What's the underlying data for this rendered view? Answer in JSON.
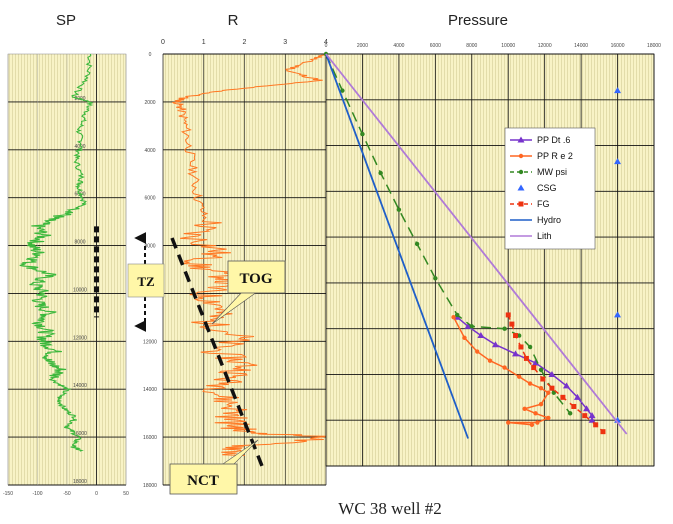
{
  "caption": "WC 38 well #2",
  "chart_data": [
    {
      "type": "line",
      "title": "SP",
      "xlim": [
        -150,
        50
      ],
      "ylim": [
        0,
        18000
      ],
      "x_ticks": [
        "-150",
        "-100",
        "-50",
        "0",
        "50"
      ],
      "y_ticks": [
        "2000",
        "4000",
        "6000",
        "8000",
        "10000",
        "12000",
        "14000",
        "16000",
        "18000"
      ],
      "series": [
        {
          "color": "#3cb83c",
          "depth": [
            0,
            1000,
            1800,
            2000,
            2600,
            3200,
            3800,
            4400,
            5200,
            5600,
            6200,
            6600,
            6900,
            7200,
            7600,
            8000,
            8400,
            8800,
            9200,
            9600,
            10000,
            10400,
            10800,
            11200,
            11600,
            12000,
            12400,
            12800,
            13200,
            13600,
            14000,
            14400,
            14800,
            15200,
            15600,
            16000,
            16400,
            16600
          ],
          "value": [
            -10,
            -15,
            -40,
            -10,
            -20,
            -30,
            -25,
            -35,
            -25,
            -30,
            -20,
            -40,
            -80,
            -100,
            -90,
            -110,
            -95,
            -120,
            -80,
            -105,
            -90,
            -100,
            -80,
            -95,
            -85,
            -90,
            -70,
            -85,
            -60,
            -75,
            -50,
            -65,
            -55,
            -35,
            -50,
            -30,
            -40,
            -25
          ]
        }
      ]
    },
    {
      "type": "line",
      "title": "R",
      "xlim": [
        0,
        4
      ],
      "ylim": [
        0,
        18000
      ],
      "x_ticks": [
        "0",
        "1",
        "2",
        "3",
        "4"
      ],
      "y_ticks": [
        "0",
        "2000",
        "4000",
        "6000",
        "8000",
        "10000",
        "12000",
        "14000",
        "16000",
        "18000"
      ],
      "series": [
        {
          "color": "#ff7722",
          "depth": [
            0,
            300,
            700,
            1100,
            1500,
            1800,
            2000,
            2300,
            3000,
            4000,
            5000,
            6000,
            7000,
            7600,
            8200,
            8800,
            9400,
            10000,
            10600,
            11200,
            11800,
            12400,
            13000,
            13600,
            14200,
            14800,
            15400,
            15800,
            16000,
            16400,
            16800
          ],
          "value": [
            4,
            3.5,
            3,
            3.8,
            1.5,
            0.5,
            0.3,
            0.4,
            0.5,
            0.6,
            0.7,
            0.8,
            1,
            0.5,
            1.2,
            0.6,
            1.5,
            0.8,
            1.3,
            0.9,
            1.7,
            1.1,
            1.9,
            1.4,
            1.2,
            1.6,
            1.5,
            1.8,
            4,
            1.7,
            1.5
          ]
        }
      ],
      "annotations": [
        "TZ",
        "TOG",
        "NCT"
      ]
    },
    {
      "type": "line",
      "title": "Pressure",
      "xlim": [
        0,
        18000
      ],
      "ylim": [
        0,
        18000
      ],
      "x_ticks": [
        "0",
        "2000",
        "4000",
        "6000",
        "8000",
        "10000",
        "12000",
        "14000",
        "16000",
        "18000"
      ],
      "series": [
        {
          "name": "PP Dt .6",
          "color": "#7733cc",
          "marker": "triangle",
          "dash": "none",
          "x": [
            7200,
            7800,
            8500,
            9300,
            10400,
            11500,
            12400,
            13200,
            13800,
            14300,
            14600,
            14600
          ],
          "y": [
            11500,
            11900,
            12300,
            12700,
            13100,
            13500,
            14000,
            14500,
            15000,
            15500,
            15800,
            16000
          ]
        },
        {
          "name": "PP R e 2",
          "color": "#ff6622",
          "marker": "dot",
          "dash": "none",
          "x": [
            7000,
            7600,
            8300,
            9000,
            9800,
            10600,
            11200,
            11800,
            12200,
            11800,
            10900,
            11500,
            12200,
            11600,
            10000,
            11300
          ],
          "y": [
            11500,
            12400,
            13000,
            13400,
            13700,
            14100,
            14400,
            14600,
            14800,
            15300,
            15500,
            15700,
            15900,
            16100,
            16100,
            16200
          ]
        },
        {
          "name": "MW psi",
          "color": "#338822",
          "marker": "dot",
          "dash": "10 6",
          "x": [
            0,
            900,
            2000,
            3000,
            4000,
            5000,
            6000,
            7200,
            8000,
            9800,
            10600,
            11200,
            11800,
            12500,
            13400
          ],
          "y": [
            0,
            1600,
            3500,
            5200,
            6800,
            8300,
            9800,
            11400,
            11900,
            12000,
            12300,
            12800,
            13800,
            14800,
            15700
          ]
        },
        {
          "name": "CSG",
          "color": "#3366ff",
          "marker": "triangle",
          "dash": "none",
          "x": [
            16000,
            16000,
            16000,
            16000
          ],
          "y": [
            1600,
            4700,
            11400,
            16000
          ]
        },
        {
          "name": "FG",
          "color": "#ee3311",
          "marker": "square",
          "dash": "5 5",
          "x": [
            10000,
            10200,
            10400,
            10700,
            11000,
            11400,
            11900,
            12400,
            13000,
            13600,
            14200,
            14800,
            15200
          ],
          "y": [
            11400,
            11800,
            12300,
            12800,
            13300,
            13700,
            14200,
            14600,
            15000,
            15400,
            15800,
            16200,
            16500
          ]
        },
        {
          "name": "Hydro",
          "color": "#1f5fc8",
          "marker": "none",
          "dash": "none",
          "x": [
            0,
            7800
          ],
          "y": [
            0,
            16800
          ]
        },
        {
          "name": "Lith",
          "color": "#b07ad8",
          "marker": "none",
          "dash": "none",
          "x": [
            0,
            16500
          ],
          "y": [
            0,
            16600
          ]
        }
      ]
    }
  ]
}
